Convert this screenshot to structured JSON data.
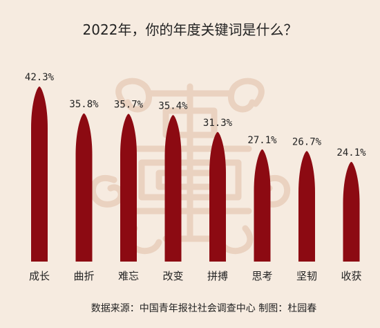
{
  "title": "2022年，你的年度关键词是什么？",
  "source": "数据来源：中国青年报社社会调查中心   制图：杜园春",
  "colors": {
    "background": "#f6ebe0",
    "bar": "#8c0a12",
    "decoration": "#ead2c0"
  },
  "chart_data": {
    "type": "bar",
    "title": "2022年，你的年度关键词是什么？",
    "categories": [
      "成长",
      "曲折",
      "难忘",
      "改变",
      "拼搏",
      "思考",
      "坚韧",
      "收获"
    ],
    "values": [
      42.3,
      35.8,
      35.7,
      35.4,
      31.3,
      27.1,
      26.7,
      24.1
    ],
    "value_labels": [
      "42.3%",
      "35.8%",
      "35.7%",
      "35.4%",
      "31.3%",
      "27.1%",
      "26.7%",
      "24.1%"
    ],
    "unit": "%",
    "ylim": [
      0,
      45
    ],
    "grid": false,
    "legend": "none"
  }
}
